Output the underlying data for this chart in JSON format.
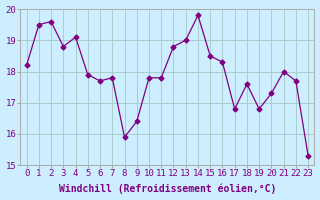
{
  "x": [
    0,
    1,
    2,
    3,
    4,
    5,
    6,
    7,
    8,
    9,
    10,
    11,
    12,
    13,
    14,
    15,
    16,
    17,
    18,
    19,
    20,
    21,
    22,
    23
  ],
  "y": [
    18.2,
    19.5,
    19.6,
    18.8,
    19.1,
    17.9,
    17.7,
    17.8,
    15.9,
    16.4,
    17.8,
    17.8,
    18.8,
    19.0,
    19.8,
    18.5,
    18.3,
    16.8,
    17.6,
    16.8,
    17.3,
    18.0,
    17.7,
    15.3
  ],
  "line_color": "#800080",
  "marker": "D",
  "markersize": 2.5,
  "bg_color": "#cceeff",
  "grid_color": "#aacccc",
  "spine_color": "#aaaaaa",
  "label_color": "#800080",
  "xlabel": "Windchill (Refroidissement éolien,°C)",
  "xlabel_fontsize": 7,
  "tick_fontsize": 6.5,
  "ylim": [
    15,
    20
  ],
  "yticks": [
    15,
    16,
    17,
    18,
    19,
    20
  ],
  "xticks": [
    0,
    1,
    2,
    3,
    4,
    5,
    6,
    7,
    8,
    9,
    10,
    11,
    12,
    13,
    14,
    15,
    16,
    17,
    18,
    19,
    20,
    21,
    22,
    23
  ]
}
